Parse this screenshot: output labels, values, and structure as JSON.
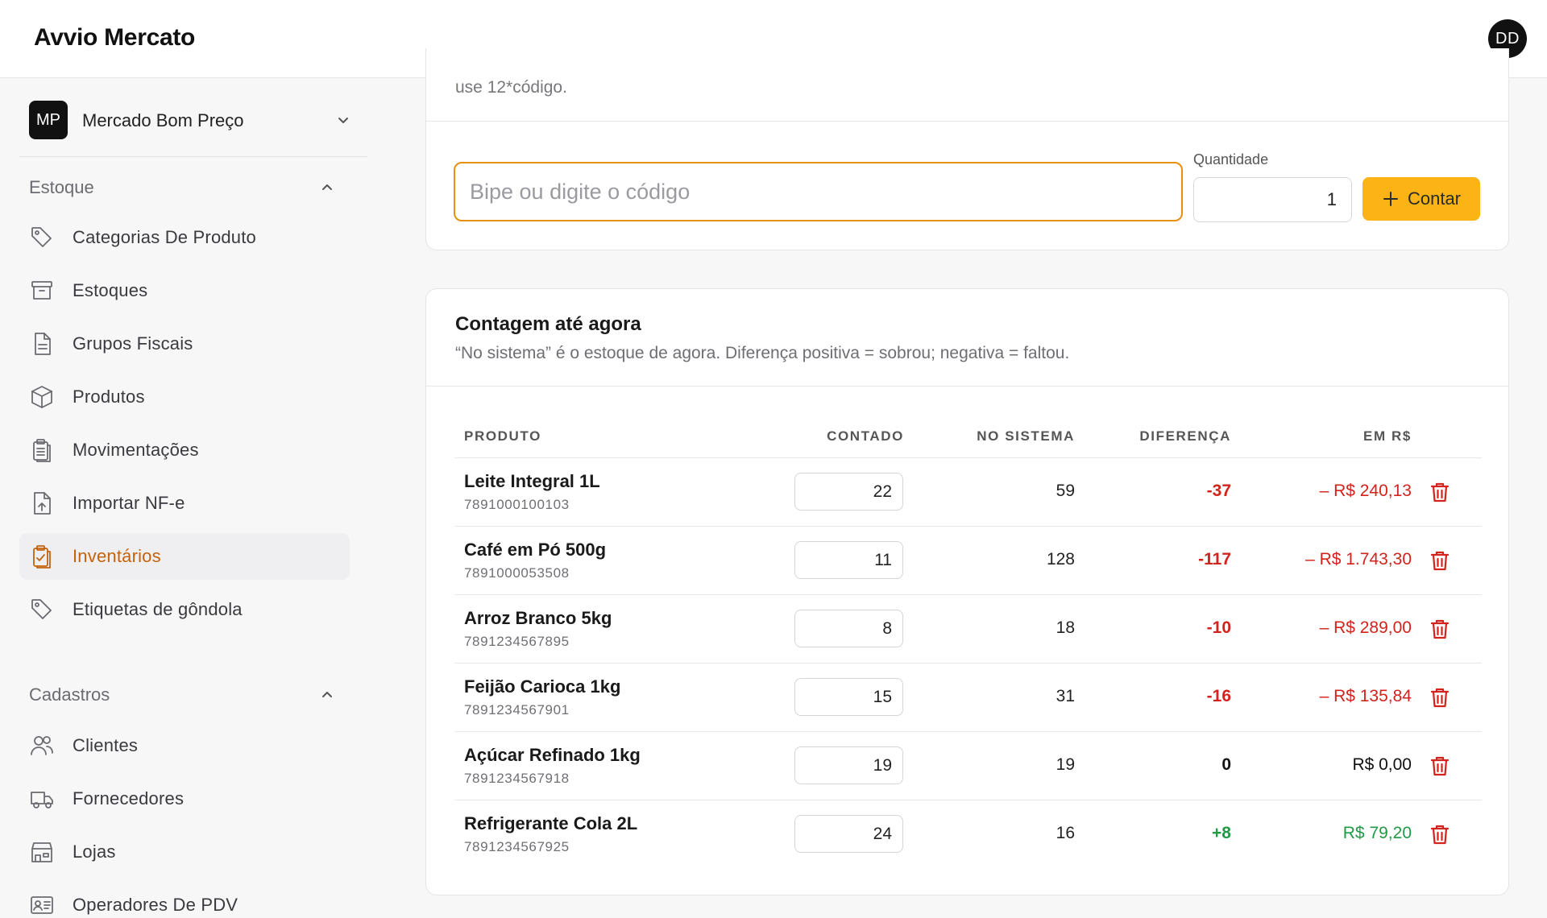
{
  "app": {
    "title": "Avvio Mercato",
    "user_initials": "DD"
  },
  "store": {
    "badge": "MP",
    "name": "Mercado Bom Preço"
  },
  "sidebar": {
    "sections": [
      {
        "title": "Estoque"
      },
      {
        "title": "Cadastros"
      }
    ],
    "estoque_items": [
      {
        "label": "Categorias De Produto",
        "icon": "tag-icon"
      },
      {
        "label": "Estoques",
        "icon": "archive-icon"
      },
      {
        "label": "Grupos Fiscais",
        "icon": "document-icon"
      },
      {
        "label": "Produtos",
        "icon": "box-icon"
      },
      {
        "label": "Movimentações",
        "icon": "clipboard-list-icon"
      },
      {
        "label": "Importar NF-e",
        "icon": "file-upload-icon"
      },
      {
        "label": "Inventários",
        "icon": "clipboard-check-icon",
        "active": true
      },
      {
        "label": "Etiquetas de gôndola",
        "icon": "tag-icon"
      }
    ],
    "cadastros_items": [
      {
        "label": "Clientes",
        "icon": "users-icon"
      },
      {
        "label": "Fornecedores",
        "icon": "truck-icon"
      },
      {
        "label": "Lojas",
        "icon": "store-icon"
      },
      {
        "label": "Operadores De PDV",
        "icon": "id-card-icon"
      }
    ]
  },
  "scan_card": {
    "note": "use 12*código.",
    "input_placeholder": "Bipe ou digite o código",
    "quantity_label": "Quantidade",
    "quantity_value": "1",
    "count_button": "Contar"
  },
  "count_card": {
    "title": "Contagem até agora",
    "subtitle": "“No sistema” é o estoque de agora. Diferença positiva = sobrou; negativa = faltou.",
    "columns": [
      "PRODUTO",
      "CONTADO",
      "NO SISTEMA",
      "DIFERENÇA",
      "EM R$"
    ],
    "rows": [
      {
        "name": "Leite Integral 1L",
        "code": "7891000100103",
        "counted": "22",
        "system": "59",
        "diff": "-37",
        "value": "– R$ 240,13",
        "status": "neg"
      },
      {
        "name": "Café em Pó 500g",
        "code": "7891000053508",
        "counted": "11",
        "system": "128",
        "diff": "-117",
        "value": "– R$ 1.743,30",
        "status": "neg"
      },
      {
        "name": "Arroz Branco 5kg",
        "code": "7891234567895",
        "counted": "8",
        "system": "18",
        "diff": "-10",
        "value": "– R$ 289,00",
        "status": "neg"
      },
      {
        "name": "Feijão Carioca 1kg",
        "code": "7891234567901",
        "counted": "15",
        "system": "31",
        "diff": "-16",
        "value": "– R$ 135,84",
        "status": "neg"
      },
      {
        "name": "Açúcar Refinado 1kg",
        "code": "7891234567918",
        "counted": "19",
        "system": "19",
        "diff": "0",
        "value": "R$ 0,00",
        "status": "zero"
      },
      {
        "name": "Refrigerante Cola 2L",
        "code": "7891234567925",
        "counted": "24",
        "system": "16",
        "diff": "+8",
        "value": "R$ 79,20",
        "status": "pos"
      }
    ]
  },
  "colors": {
    "accent": "#c4630b",
    "button": "#fbb316",
    "negative": "#d2231c",
    "positive": "#1f9a45",
    "focus_border": "#e8900f"
  }
}
